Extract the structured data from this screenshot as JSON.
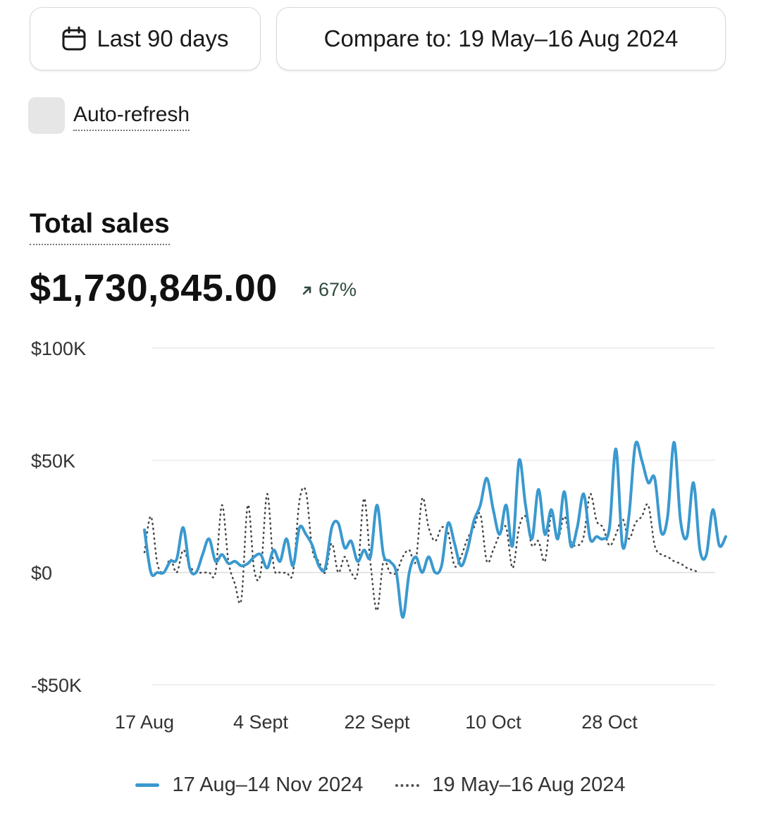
{
  "toolbar": {
    "date_range_label": "Last 90 days",
    "compare_label": "Compare to: 19 May–16 Aug 2024",
    "calendar_icon": "calendar-icon"
  },
  "auto_refresh": {
    "label": "Auto-refresh",
    "checked": false
  },
  "metric": {
    "title": "Total sales",
    "value": "$1,730,845.00",
    "change": "67%",
    "change_icon": "arrow-up-right-icon",
    "change_color": "#2f4a3c"
  },
  "chart_data": {
    "type": "line",
    "ylim": [
      -50000,
      100000
    ],
    "yticks": [
      {
        "label": "$100K",
        "value": 100000
      },
      {
        "label": "$50K",
        "value": 50000
      },
      {
        "label": "$0",
        "value": 0
      },
      {
        "label": "-$50K",
        "value": -50000
      }
    ],
    "xticks": [
      "17 Aug",
      "4 Sept",
      "22 Sept",
      "10 Oct",
      "28 Oct"
    ],
    "xtick_index": [
      0,
      18,
      36,
      54,
      72
    ],
    "grid": true,
    "legend_position": "bottom",
    "series": [
      {
        "name": "17 Aug–14 Nov 2024",
        "style": "solid",
        "color": "#3a99cf",
        "values": [
          19000,
          0,
          0,
          0,
          5000,
          6000,
          20000,
          2000,
          0,
          8000,
          15000,
          5000,
          8000,
          4000,
          5000,
          3000,
          4000,
          7000,
          8000,
          2000,
          10000,
          5000,
          15000,
          3000,
          20000,
          17000,
          12000,
          3000,
          2000,
          20000,
          22000,
          11000,
          14000,
          5000,
          10000,
          7000,
          30000,
          8000,
          5000,
          0,
          -20000,
          0,
          7000,
          0,
          7000,
          0,
          3000,
          22000,
          13000,
          3000,
          10000,
          23000,
          30000,
          42000,
          28000,
          17000,
          30000,
          12000,
          50000,
          30000,
          15000,
          37000,
          17000,
          28000,
          15000,
          36000,
          12000,
          20000,
          35000,
          15000,
          16000,
          15000,
          20000,
          55000,
          12000,
          25000,
          57000,
          50000,
          40000,
          42000,
          18000,
          25000,
          58000,
          23000,
          16000,
          40000,
          10000,
          8000,
          28000,
          12000,
          16000
        ]
      },
      {
        "name": "19 May–16 Aug 2024",
        "style": "dotted",
        "color": "#444444",
        "values": [
          9000,
          25000,
          4000,
          0,
          6000,
          0,
          10000,
          3000,
          0,
          0,
          0,
          0,
          30000,
          5000,
          -5000,
          -12000,
          30000,
          1000,
          0,
          35000,
          3000,
          0,
          0,
          0,
          32000,
          36000,
          10000,
          5000,
          0,
          13000,
          0,
          7000,
          0,
          0,
          33000,
          4000,
          -17000,
          5000,
          0,
          0,
          7000,
          10000,
          5000,
          33000,
          20000,
          14000,
          20000,
          18000,
          3000,
          7000,
          15000,
          20000,
          26000,
          5000,
          10000,
          17000,
          20000,
          2000,
          20000,
          25000,
          12000,
          14000,
          5000,
          26000,
          15000,
          25000,
          14000,
          12000,
          16000,
          35000,
          23000,
          20000,
          12000,
          17000,
          24000,
          15000,
          22000,
          25000,
          30000,
          12000,
          8000,
          7000,
          5000,
          4000,
          2000,
          1000,
          0
        ]
      }
    ]
  }
}
